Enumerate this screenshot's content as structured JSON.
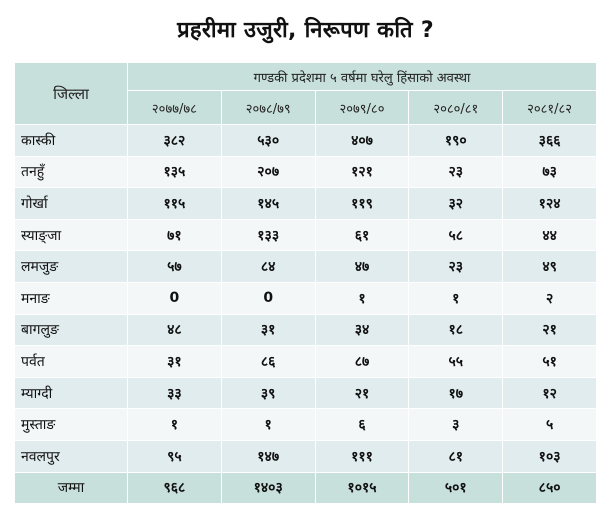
{
  "title": "प्रहरीमा उजुरी, निरूपण कति ?",
  "chart_data": {
    "type": "table",
    "corner_label": "जिल्ला",
    "group_header": "गण्डकी प्रदेशमा ५ वर्षमा घरेलु हिंसाको अवस्था",
    "columns": [
      "२०७७/७८",
      "२०७८/७९",
      "२०७९/८०",
      "२०८०/८१",
      "२०८१/८२"
    ],
    "rows": [
      {
        "district": "कास्की",
        "values": [
          "३८२",
          "५३०",
          "४०७",
          "१९०",
          "३६६"
        ]
      },
      {
        "district": "तनहुँ",
        "values": [
          "१३५",
          "२०७",
          "१२१",
          "२३",
          "७३"
        ]
      },
      {
        "district": "गोर्खा",
        "values": [
          "११५",
          "१४५",
          "११९",
          "३२",
          "१२४"
        ]
      },
      {
        "district": "स्याङ्जा",
        "values": [
          "७१",
          "१३३",
          "६१",
          "५८",
          "४४"
        ]
      },
      {
        "district": "लमजुङ",
        "values": [
          "५७",
          "८४",
          "४७",
          "२३",
          "४९"
        ]
      },
      {
        "district": "मनाङ",
        "values": [
          "0",
          "0",
          "१",
          "१",
          "२"
        ]
      },
      {
        "district": "बागलुङ",
        "values": [
          "४८",
          "३१",
          "३४",
          "१८",
          "२१"
        ]
      },
      {
        "district": "पर्वत",
        "values": [
          "३१",
          "८६",
          "८७",
          "५५",
          "५१"
        ]
      },
      {
        "district": "म्याग्दी",
        "values": [
          "३३",
          "३९",
          "२१",
          "१७",
          "१२"
        ]
      },
      {
        "district": "मुस्ताङ",
        "values": [
          "१",
          "१",
          "६",
          "३",
          "५"
        ]
      },
      {
        "district": "नवलपुर",
        "values": [
          "९५",
          "१४७",
          "१११",
          "८१",
          "१०३"
        ]
      }
    ],
    "total": {
      "district": "जम्मा",
      "values": [
        "९६८",
        "१४०३",
        "१०१५",
        "५०१",
        "८५०"
      ]
    }
  },
  "colors": {
    "header": "#c8e0dc",
    "row_dark": "#e1ecef",
    "row_light": "#f3f7f8"
  }
}
